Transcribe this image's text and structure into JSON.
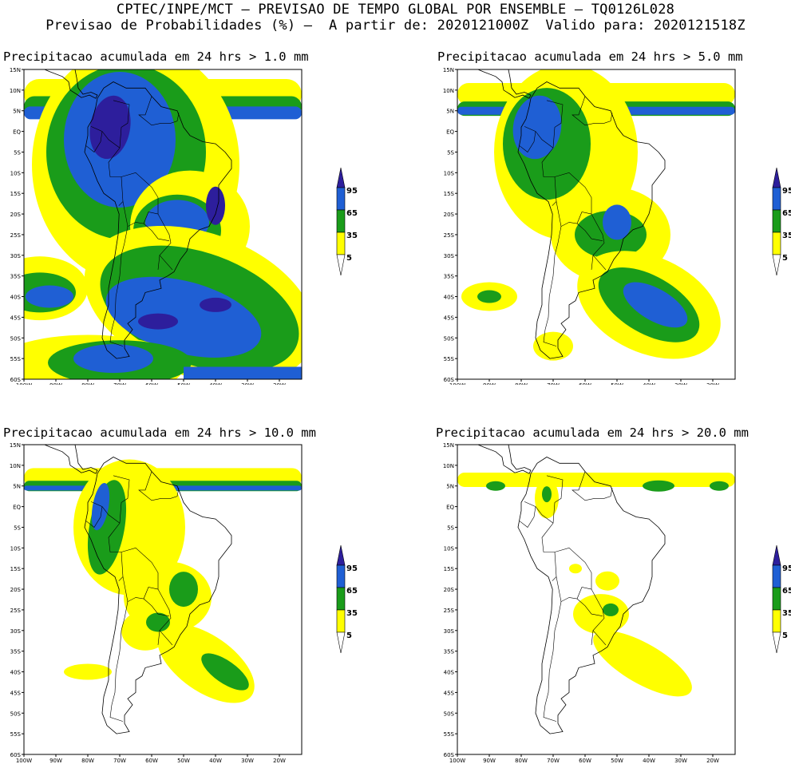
{
  "header": {
    "line1": "CPTEC/INPE/MCT – PREVISAO DE TEMPO GLOBAL POR ENSEMBLE – TQ0126L028",
    "line2": "Previsao de Probabilidades (%) –  A partir de: 2020121000Z  Valido para: 2020121518Z"
  },
  "colors": {
    "c5": "#ffff00",
    "c35": "#1a9c1a",
    "c65": "#1f5fd4",
    "c95": "#2d1e9c",
    "coast": "#000000"
  },
  "axes": {
    "lat_labels": [
      "15N",
      "10N",
      "5N",
      "EQ",
      "5S",
      "10S",
      "15S",
      "20S",
      "25S",
      "30S",
      "35S",
      "40S",
      "45S",
      "50S",
      "55S",
      "60S"
    ],
    "lon_labels": [
      "100W",
      "90W",
      "80W",
      "70W",
      "60W",
      "50W",
      "40W",
      "30W",
      "20W"
    ]
  },
  "legend": {
    "levels": [
      "95",
      "65",
      "35",
      "5"
    ]
  },
  "panels": [
    {
      "id": "p1",
      "title": "Precipitacao acumulada em 24 hrs > 1.0 mm"
    },
    {
      "id": "p2",
      "title": "Precipitacao acumulada em 24 hrs > 5.0 mm"
    },
    {
      "id": "p3",
      "title": "Precipitacao acumulada em 24 hrs > 10.0 mm"
    },
    {
      "id": "p4",
      "title": "Precipitacao acumulada em 24 hrs > 20.0 mm"
    }
  ]
}
